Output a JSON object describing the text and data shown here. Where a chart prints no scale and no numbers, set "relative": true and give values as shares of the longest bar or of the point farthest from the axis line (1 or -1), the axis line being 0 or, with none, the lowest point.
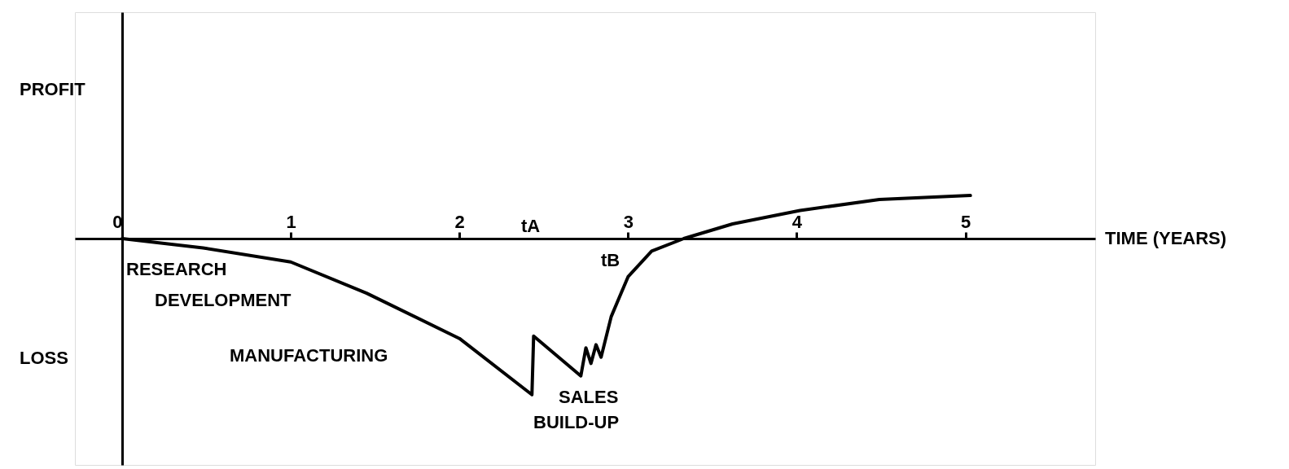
{
  "chart_data": {
    "type": "line",
    "relative": true,
    "xlabel": "TIME (YEARS)",
    "x": [
      0,
      0.48,
      1,
      1.45,
      2,
      2.43,
      2.44,
      2.72,
      2.75,
      2.78,
      2.81,
      2.84,
      2.9,
      3,
      3.14,
      3.33,
      3.62,
      4.02,
      4.49,
      5.03
    ],
    "values": [
      0,
      -0.06,
      -0.15,
      -0.35,
      -0.64,
      -1.0,
      -0.625,
      -0.88,
      -0.7,
      -0.8,
      -0.68,
      -0.76,
      -0.5,
      -0.245,
      -0.08,
      0,
      0.094,
      0.18,
      0.25,
      0.276
    ],
    "color": "#000000",
    "xlim": [
      -0.28,
      5.77
    ],
    "xticks": [
      0,
      1,
      2,
      3,
      4,
      5
    ],
    "marker": "none",
    "line_style": "solid",
    "annotations": [
      "PROFIT",
      "LOSS",
      "RESEARCH",
      "DEVELOPMENT",
      "MANUFACTURING",
      "SALES",
      "BUILD-UP",
      "tA",
      "tB"
    ]
  }
}
